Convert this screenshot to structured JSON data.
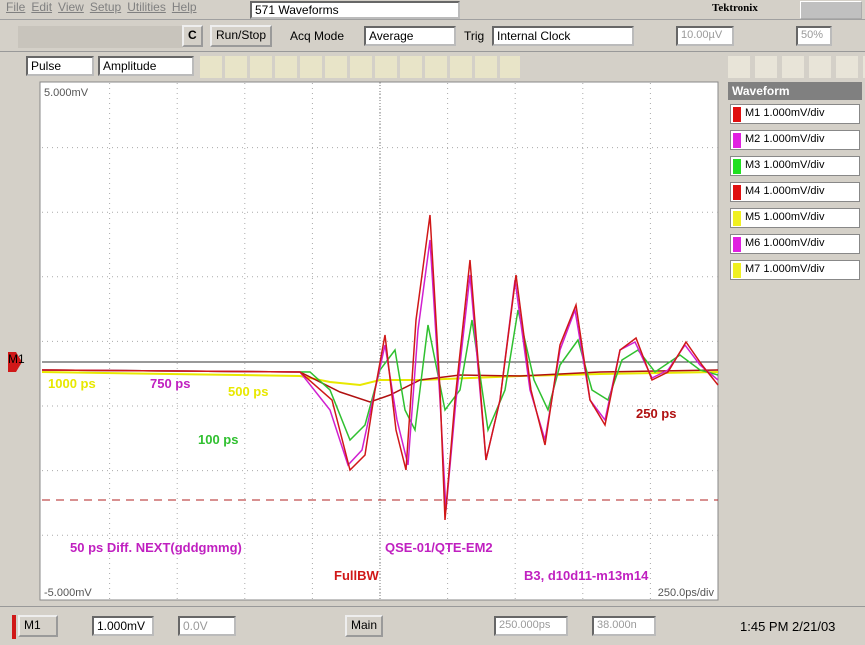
{
  "menu": [
    "File",
    "Edit",
    "View",
    "Setup",
    "Utilities",
    "Help"
  ],
  "waveform_count": "571 Waveforms",
  "brand": "Tektronix",
  "toolbar": {
    "clear": "C",
    "run_stop": "Run/Stop",
    "acq_mode": "Acq Mode",
    "acq_value": "Average",
    "trig": "Trig",
    "trig_value": "Internal Clock",
    "level": "10.00µV",
    "percent": "50%"
  },
  "measure": {
    "category": "Pulse",
    "type": "Amplitude"
  },
  "plot": {
    "marker": "M1",
    "top": "5.000mV",
    "bottom": "-5.000mV",
    "timebase": "250.0ps/div",
    "annotations": [
      "1000 ps",
      "750 ps",
      "500 ps",
      "250 ps",
      "100 ps",
      "50 ps Diff. NEXT(gddgmmg)",
      "QSE-01/QTE-EM2",
      "FullBW",
      "B3, d10d11-m13m14"
    ]
  },
  "panel": {
    "title": "Waveform",
    "channels": [
      {
        "label": "M1 1.000mV/div",
        "color": "#e01010"
      },
      {
        "label": "M2 1.000mV/div",
        "color": "#e020e0"
      },
      {
        "label": "M3 1.000mV/div",
        "color": "#20e020"
      },
      {
        "label": "M4 1.000mV/div",
        "color": "#e01010"
      },
      {
        "label": "M5 1.000mV/div",
        "color": "#f0f020"
      },
      {
        "label": "M6 1.000mV/div",
        "color": "#e020e0"
      },
      {
        "label": "M7 1.000mV/div",
        "color": "#f0f020"
      }
    ]
  },
  "status": {
    "channel": "M1",
    "scale": "1.000mV",
    "offset": "0.0V",
    "view": "Main",
    "position": "250.000ps",
    "delay": "38.000n",
    "clock": "1:45 PM 2/21/03"
  }
}
